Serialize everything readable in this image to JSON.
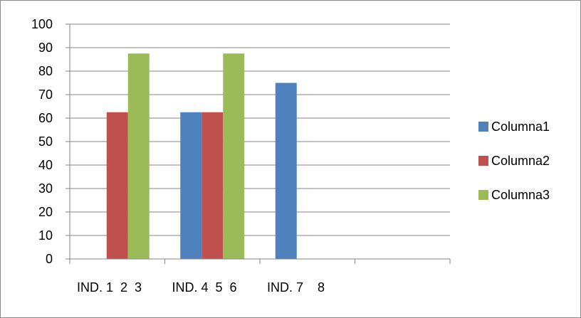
{
  "chart_data": {
    "type": "bar",
    "categories": [
      "IND. 1  2  3",
      "IND. 4  5  6",
      "IND. 7    8",
      ""
    ],
    "series": [
      {
        "name": "Columna1",
        "color": "#4F81BD",
        "values": [
          null,
          62.5,
          75,
          null
        ]
      },
      {
        "name": "Columna2",
        "color": "#C0504D",
        "values": [
          62.5,
          62.5,
          null,
          null
        ]
      },
      {
        "name": "Columna3",
        "color": "#9BBB59",
        "values": [
          87.5,
          87.5,
          null,
          null
        ]
      }
    ],
    "ylim": [
      0,
      100
    ],
    "yticks": [
      0,
      10,
      20,
      30,
      40,
      50,
      60,
      70,
      80,
      90,
      100
    ],
    "grid": true,
    "legend": "right"
  }
}
